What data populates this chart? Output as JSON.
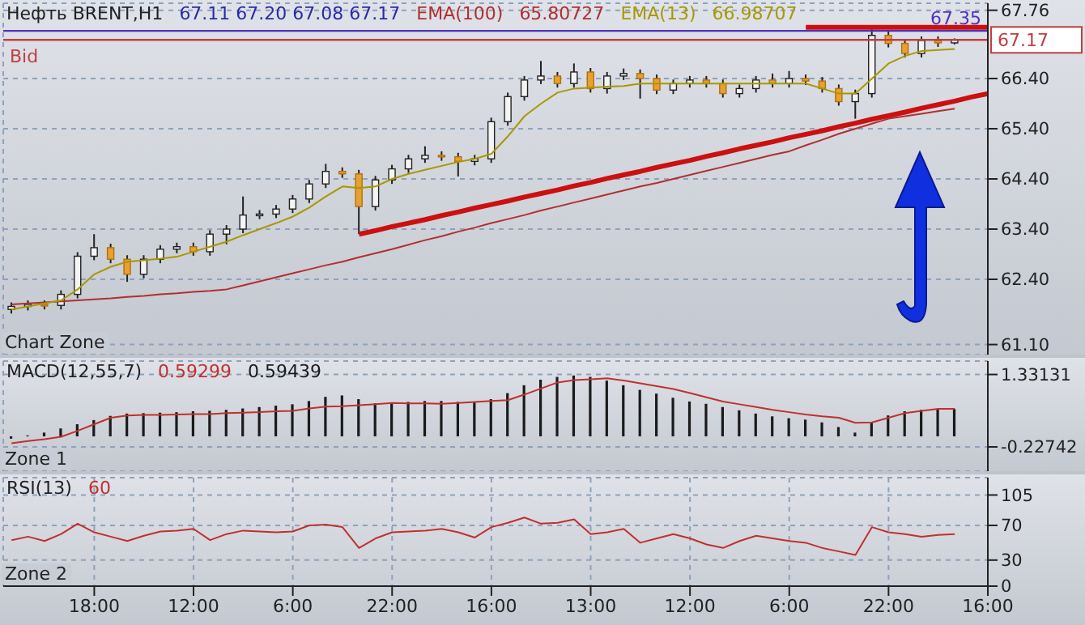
{
  "chart_data": [
    {
      "type": "candlestick",
      "title": "Нефть BRENT,H1",
      "categories": [
        null,
        null,
        null,
        null,
        null,
        null,
        null,
        null,
        null,
        null,
        null,
        null,
        null,
        null,
        null,
        null,
        null,
        null,
        null,
        null,
        null,
        null,
        null,
        null,
        null,
        null,
        null,
        null,
        null,
        null,
        null,
        null,
        null,
        null,
        null,
        null,
        null,
        null,
        null,
        null,
        null,
        null,
        null,
        null,
        null,
        null,
        null,
        null,
        null,
        null,
        null,
        null,
        null,
        null,
        null,
        null,
        null,
        null,
        null,
        null
      ],
      "ohlc": [
        [
          61.8,
          61.94,
          61.72,
          61.86
        ],
        [
          61.86,
          61.98,
          61.78,
          61.9
        ],
        [
          61.9,
          61.98,
          61.8,
          61.88
        ],
        [
          61.88,
          62.18,
          61.8,
          62.1
        ],
        [
          62.1,
          62.94,
          62.02,
          62.86
        ],
        [
          62.86,
          63.3,
          62.78,
          63.03
        ],
        [
          63.03,
          63.11,
          62.72,
          62.8
        ],
        [
          62.8,
          62.88,
          62.35,
          62.5
        ],
        [
          62.5,
          62.88,
          62.42,
          62.8
        ],
        [
          62.8,
          63.08,
          62.72,
          63.0
        ],
        [
          63.0,
          63.13,
          62.92,
          63.05
        ],
        [
          63.05,
          63.13,
          62.87,
          62.95
        ],
        [
          62.95,
          63.38,
          62.87,
          63.3
        ],
        [
          63.3,
          63.48,
          63.1,
          63.4
        ],
        [
          63.4,
          64.05,
          63.32,
          63.68
        ],
        [
          63.68,
          63.78,
          63.6,
          63.7
        ],
        [
          63.7,
          63.88,
          63.62,
          63.8
        ],
        [
          63.8,
          64.08,
          63.72,
          64.0
        ],
        [
          64.0,
          64.38,
          63.92,
          64.3
        ],
        [
          64.3,
          64.7,
          64.22,
          64.55
        ],
        [
          64.55,
          64.63,
          64.42,
          64.5
        ],
        [
          64.5,
          64.58,
          63.3,
          63.85
        ],
        [
          63.85,
          64.46,
          63.77,
          64.38
        ],
        [
          64.38,
          64.68,
          64.3,
          64.6
        ],
        [
          64.6,
          64.88,
          64.52,
          64.8
        ],
        [
          64.8,
          65.05,
          64.72,
          64.87
        ],
        [
          64.87,
          64.95,
          64.76,
          64.84
        ],
        [
          64.84,
          64.92,
          64.45,
          64.75
        ],
        [
          64.75,
          64.88,
          64.67,
          64.8
        ],
        [
          64.8,
          65.62,
          64.72,
          65.54
        ],
        [
          65.54,
          66.12,
          65.46,
          66.04
        ],
        [
          66.04,
          66.45,
          65.96,
          66.37
        ],
        [
          66.37,
          66.75,
          66.29,
          66.45
        ],
        [
          66.45,
          66.53,
          66.22,
          66.3
        ],
        [
          66.3,
          66.7,
          66.22,
          66.53
        ],
        [
          66.53,
          66.61,
          66.12,
          66.2
        ],
        [
          66.2,
          66.53,
          66.1,
          66.45
        ],
        [
          66.45,
          66.6,
          66.37,
          66.5
        ],
        [
          66.5,
          66.58,
          66.0,
          66.4
        ],
        [
          66.4,
          66.48,
          66.09,
          66.17
        ],
        [
          66.17,
          66.38,
          66.09,
          66.3
        ],
        [
          66.3,
          66.45,
          66.22,
          66.37
        ],
        [
          66.37,
          66.45,
          66.22,
          66.3
        ],
        [
          66.3,
          66.38,
          66.02,
          66.1
        ],
        [
          66.1,
          66.28,
          66.02,
          66.2
        ],
        [
          66.2,
          66.45,
          66.12,
          66.37
        ],
        [
          66.37,
          66.5,
          66.22,
          66.3
        ],
        [
          66.3,
          66.55,
          66.22,
          66.4
        ],
        [
          66.4,
          66.48,
          66.27,
          66.35
        ],
        [
          66.35,
          66.43,
          66.12,
          66.2
        ],
        [
          66.2,
          66.28,
          65.86,
          65.94
        ],
        [
          65.94,
          66.18,
          65.6,
          66.1
        ],
        [
          66.1,
          67.4,
          66.02,
          67.26
        ],
        [
          67.26,
          67.34,
          67.02,
          67.1
        ],
        [
          67.1,
          67.18,
          66.82,
          66.9
        ],
        [
          66.9,
          67.24,
          66.82,
          67.16
        ],
        [
          67.16,
          67.24,
          67.03,
          67.11
        ],
        [
          67.11,
          67.2,
          67.08,
          67.17
        ],
        null,
        null
      ],
      "series": [
        {
          "type": "line",
          "name": "EMA(100)",
          "color": "#b03030",
          "values": [
            61.9,
            61.92,
            61.94,
            61.96,
            61.98,
            62.0,
            62.02,
            62.05,
            62.07,
            62.1,
            62.12,
            62.15,
            62.17,
            62.2,
            62.28,
            62.36,
            62.44,
            62.52,
            62.6,
            62.68,
            62.75,
            62.84,
            62.92,
            63.0,
            63.09,
            63.18,
            63.26,
            63.35,
            63.43,
            63.52,
            63.6,
            63.68,
            63.77,
            63.85,
            63.93,
            64.01,
            64.09,
            64.17,
            64.25,
            64.32,
            64.4,
            64.48,
            64.56,
            64.64,
            64.72,
            64.8,
            64.88,
            64.95,
            65.07,
            65.18,
            65.3,
            65.4,
            65.5,
            65.6,
            65.65,
            65.7,
            65.75,
            65.8,
            null,
            null
          ]
        },
        {
          "type": "line",
          "name": "EMA(13)",
          "color": "#a89800",
          "values": [
            61.8,
            61.86,
            61.92,
            61.98,
            62.2,
            62.5,
            62.65,
            62.75,
            62.78,
            62.81,
            62.85,
            62.95,
            63.05,
            63.15,
            63.28,
            63.4,
            63.52,
            63.65,
            63.83,
            64.05,
            64.25,
            64.22,
            64.25,
            64.4,
            64.5,
            64.58,
            64.66,
            64.74,
            64.8,
            64.9,
            65.25,
            65.65,
            65.9,
            66.12,
            66.2,
            66.22,
            66.24,
            66.25,
            66.3,
            66.3,
            66.3,
            66.3,
            66.3,
            66.3,
            66.3,
            66.3,
            66.3,
            66.3,
            66.3,
            66.2,
            66.1,
            66.1,
            66.4,
            66.7,
            66.85,
            66.95,
            66.97,
            66.99,
            null,
            null
          ]
        },
        {
          "type": "line",
          "color": "#cc1010",
          "values": [
            null,
            null,
            null,
            null,
            null,
            null,
            null,
            null,
            null,
            null,
            null,
            null,
            null,
            null,
            null,
            null,
            null,
            null,
            null,
            null,
            null,
            63.3,
            63.37,
            63.45,
            63.52,
            63.59,
            63.67,
            63.74,
            63.82,
            63.89,
            63.96,
            64.04,
            64.11,
            64.18,
            64.26,
            64.33,
            64.41,
            64.48,
            64.55,
            64.63,
            64.7,
            64.77,
            64.85,
            64.92,
            65.0,
            65.07,
            65.14,
            65.22,
            65.29,
            65.36,
            65.44,
            65.51,
            65.59,
            65.66,
            65.73,
            65.81,
            65.88,
            65.95,
            66.03,
            66.1
          ]
        },
        {
          "type": "line",
          "color": "#cc1010",
          "values": [
            null,
            null,
            null,
            null,
            null,
            null,
            null,
            null,
            null,
            null,
            null,
            null,
            null,
            null,
            null,
            null,
            null,
            null,
            null,
            null,
            null,
            null,
            null,
            null,
            null,
            null,
            null,
            null,
            null,
            null,
            null,
            null,
            null,
            null,
            null,
            null,
            null,
            null,
            null,
            null,
            null,
            null,
            null,
            null,
            null,
            null,
            null,
            null,
            67.42,
            67.42,
            67.42,
            67.42,
            67.42,
            67.42,
            67.42,
            67.42,
            67.42,
            67.42,
            67.42,
            67.42
          ]
        }
      ],
      "ylim": [
        60.9,
        67.9
      ],
      "yticks": [
        {
          "value": 61.1,
          "label": "61.10"
        },
        {
          "value": 62.4,
          "label": "62.40"
        },
        {
          "value": 63.4,
          "label": "63.40"
        },
        {
          "value": 64.4,
          "label": "64.40"
        },
        {
          "value": 65.4,
          "label": "65.40"
        },
        {
          "value": 66.4,
          "label": "66.40"
        },
        67.76
      ],
      "ref_lines": [
        {
          "axis": "y",
          "value": 67.35,
          "label": "67.35",
          "color": "#5030c0"
        },
        {
          "axis": "y",
          "value": 67.17,
          "label": "Bid",
          "color": "#c04040"
        }
      ],
      "annotations": [
        "67.11  67.20  67.08  67.17",
        "65.80727",
        "66.98707",
        "67.17",
        "Chart Zone"
      ],
      "grid": true,
      "marker": "none",
      "tick_labels": "y"
    },
    {
      "type": "bar",
      "title": "MACD(12,55,7)",
      "categories": [
        null,
        null,
        null,
        null,
        null,
        null,
        null,
        null,
        null,
        null,
        null,
        null,
        null,
        null,
        null,
        null,
        null,
        null,
        null,
        null,
        null,
        null,
        null,
        null,
        null,
        null,
        null,
        null,
        null,
        null,
        null,
        null,
        null,
        null,
        null,
        null,
        null,
        null,
        null,
        null,
        null,
        null,
        null,
        null,
        null,
        null,
        null,
        null,
        null,
        null,
        null,
        null,
        null,
        null,
        null,
        null,
        null,
        null,
        null,
        null
      ],
      "values": [
        -0.05,
        0.02,
        0.08,
        0.17,
        0.26,
        0.35,
        0.44,
        0.49,
        0.5,
        0.51,
        0.52,
        0.54,
        0.55,
        0.57,
        0.6,
        0.63,
        0.66,
        0.69,
        0.76,
        0.85,
        0.88,
        0.8,
        0.71,
        0.72,
        0.74,
        0.76,
        0.76,
        0.74,
        0.73,
        0.8,
        0.93,
        1.1,
        1.22,
        1.28,
        1.31,
        1.28,
        1.2,
        1.1,
        1.0,
        0.92,
        0.83,
        0.75,
        0.7,
        0.63,
        0.56,
        0.49,
        0.43,
        0.39,
        0.36,
        0.3,
        0.2,
        0.08,
        0.3,
        0.45,
        0.54,
        0.57,
        0.58,
        0.59,
        null,
        null
      ],
      "color": "#1a1a1a",
      "series": [
        {
          "type": "line",
          "color": "#c03030",
          "values": [
            -0.15,
            -0.1,
            -0.06,
            -0.01,
            0.12,
            0.26,
            0.4,
            0.45,
            0.46,
            0.46,
            0.47,
            0.48,
            0.48,
            0.5,
            0.51,
            0.52,
            0.54,
            0.55,
            0.6,
            0.64,
            0.65,
            0.67,
            0.69,
            0.72,
            0.71,
            0.71,
            0.7,
            0.72,
            0.74,
            0.76,
            0.78,
            0.9,
            1.03,
            1.16,
            1.21,
            1.23,
            1.25,
            1.2,
            1.14,
            1.08,
            1.02,
            0.93,
            0.84,
            0.75,
            0.69,
            0.63,
            0.57,
            0.52,
            0.47,
            0.43,
            0.4,
            0.29,
            0.3,
            0.4,
            0.5,
            0.55,
            0.59,
            0.59,
            null,
            null
          ]
        }
      ],
      "ylim": [
        -0.75,
        1.62
      ],
      "yticks": [
        -0.22742,
        1.33131
      ],
      "annotations": [
        "0.59299",
        "0.59439",
        "Zone 1"
      ],
      "grid": true,
      "marker": "none",
      "tick_labels": "y"
    },
    {
      "type": "line",
      "title": "RSI(13)",
      "categories": [
        null,
        null,
        null,
        null,
        null,
        "18:00",
        null,
        null,
        null,
        null,
        null,
        "12:00",
        null,
        null,
        null,
        null,
        null,
        "6:00",
        null,
        null,
        null,
        null,
        null,
        "22:00",
        null,
        null,
        null,
        null,
        null,
        "16:00",
        null,
        null,
        null,
        null,
        null,
        "13:00",
        null,
        null,
        null,
        null,
        null,
        "12:00",
        null,
        null,
        null,
        null,
        null,
        "6:00",
        null,
        null,
        null,
        null,
        null,
        "22:00",
        null,
        null,
        null,
        null,
        null,
        "16:00"
      ],
      "values": [
        53,
        57,
        52,
        60,
        72,
        62,
        57,
        52,
        58,
        63,
        64,
        66,
        53,
        60,
        64,
        63,
        62,
        63,
        70,
        71,
        68,
        44,
        55,
        62,
        63,
        64,
        66,
        62,
        56,
        68,
        73,
        79,
        72,
        73,
        77,
        60,
        62,
        66,
        50,
        55,
        60,
        55,
        48,
        44,
        52,
        58,
        55,
        52,
        50,
        44,
        40,
        36,
        68,
        62,
        60,
        57,
        59,
        60,
        null,
        null
      ],
      "color": "#c03030",
      "ylim": [
        0,
        125
      ],
      "yticks": [
        0,
        30,
        70,
        105
      ],
      "annotations": [
        "60",
        "Zone 2"
      ],
      "grid": true,
      "marker": "none"
    }
  ]
}
